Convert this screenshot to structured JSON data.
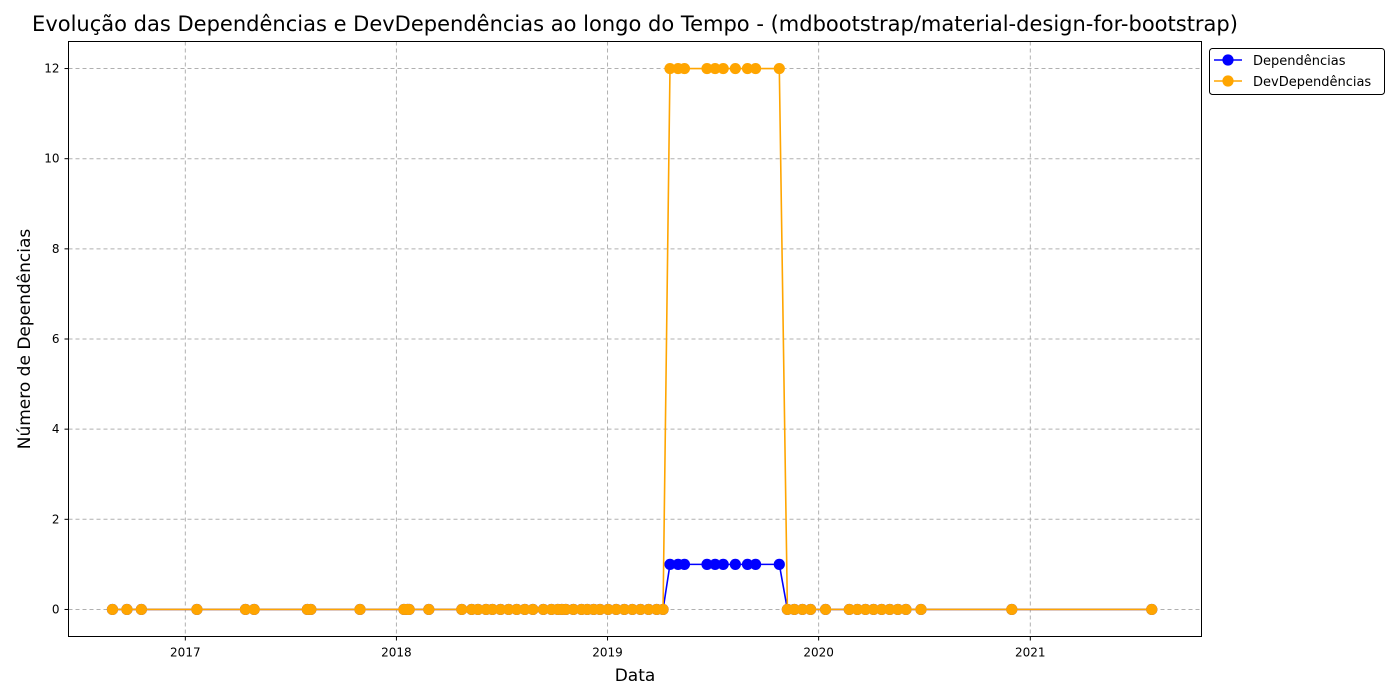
{
  "chart_data": {
    "type": "line",
    "title": "Evolução das Dependências e DevDependências ao longo do Tempo - (mdbootstrap/material-design-for-bootstrap)",
    "xlabel": "Data",
    "ylabel": "Número de Dependências",
    "xlim": [
      "2016-06-13",
      "2021-10-24"
    ],
    "ylim": [
      -0.6,
      12.6
    ],
    "x_ticks": [
      "2017-01-01",
      "2018-01-01",
      "2019-01-01",
      "2020-01-01",
      "2021-01-01"
    ],
    "x_tick_labels": [
      "2017",
      "2018",
      "2019",
      "2020",
      "2021"
    ],
    "y_ticks": [
      0,
      2,
      4,
      6,
      8,
      10,
      12
    ],
    "grid": true,
    "legend_position": "upper-right outside plot",
    "x": [
      "2016-08-28",
      "2016-09-22",
      "2016-10-17",
      "2017-01-21",
      "2017-04-15",
      "2017-04-30",
      "2017-07-31",
      "2017-08-06",
      "2017-10-30",
      "2018-01-14",
      "2018-01-20",
      "2018-01-23",
      "2018-02-26",
      "2018-04-24",
      "2018-05-11",
      "2018-05-22",
      "2018-06-05",
      "2018-06-16",
      "2018-06-30",
      "2018-07-14",
      "2018-07-28",
      "2018-08-11",
      "2018-08-25",
      "2018-09-12",
      "2018-09-26",
      "2018-10-07",
      "2018-10-14",
      "2018-10-21",
      "2018-11-03",
      "2018-11-17",
      "2018-11-27",
      "2018-12-08",
      "2018-12-19",
      "2019-01-02",
      "2019-01-16",
      "2019-01-30",
      "2019-02-13",
      "2019-02-27",
      "2019-03-13",
      "2019-03-27",
      "2019-04-07",
      "2019-04-19",
      "2019-05-03",
      "2019-05-14",
      "2019-06-22",
      "2019-07-06",
      "2019-07-20",
      "2019-08-10",
      "2019-08-31",
      "2019-09-14",
      "2019-10-25",
      "2019-11-08",
      "2019-11-20",
      "2019-12-04",
      "2019-12-18",
      "2020-01-13",
      "2020-02-23",
      "2020-03-08",
      "2020-03-22",
      "2020-04-05",
      "2020-04-19",
      "2020-05-03",
      "2020-05-17",
      "2020-05-31",
      "2020-06-26",
      "2020-11-30",
      "2021-07-30"
    ],
    "series": [
      {
        "name": "Dependências",
        "color": "#0000ff",
        "values": [
          0,
          0,
          0,
          0,
          0,
          0,
          0,
          0,
          0,
          0,
          0,
          0,
          0,
          0,
          0,
          0,
          0,
          0,
          0,
          0,
          0,
          0,
          0,
          0,
          0,
          0,
          0,
          0,
          0,
          0,
          0,
          0,
          0,
          0,
          0,
          0,
          0,
          0,
          0,
          0,
          0,
          1,
          1,
          1,
          1,
          1,
          1,
          1,
          1,
          1,
          1,
          0,
          0,
          0,
          0,
          0,
          0,
          0,
          0,
          0,
          0,
          0,
          0,
          0,
          0,
          0,
          0
        ]
      },
      {
        "name": "DevDependências",
        "color": "#ffa500",
        "values": [
          0,
          0,
          0,
          0,
          0,
          0,
          0,
          0,
          0,
          0,
          0,
          0,
          0,
          0,
          0,
          0,
          0,
          0,
          0,
          0,
          0,
          0,
          0,
          0,
          0,
          0,
          0,
          0,
          0,
          0,
          0,
          0,
          0,
          0,
          0,
          0,
          0,
          0,
          0,
          0,
          0,
          12,
          12,
          12,
          12,
          12,
          12,
          12,
          12,
          12,
          12,
          0,
          0,
          0,
          0,
          0,
          0,
          0,
          0,
          0,
          0,
          0,
          0,
          0,
          0,
          0,
          0
        ]
      }
    ]
  }
}
